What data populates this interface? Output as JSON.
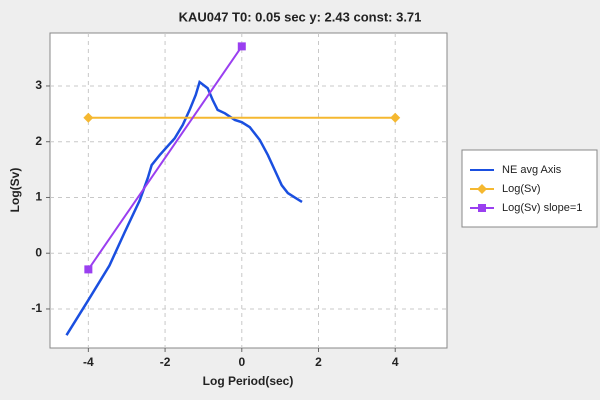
{
  "chart_data": {
    "type": "line",
    "title": "KAU047 T0: 0.05 sec  y: 2.43 const: 3.71",
    "x_label": "Log Period(sec)",
    "y_label": "Log(Sv)",
    "xlim": [
      -5,
      5.35
    ],
    "ylim": [
      -1.7,
      3.95
    ],
    "xticks": [
      -4,
      -2,
      0,
      2,
      4
    ],
    "yticks": [
      -1,
      0,
      1,
      2,
      3
    ],
    "grid": true,
    "legend": "right",
    "series": [
      {
        "name": "NE avg Axis",
        "color": "#1a4fe0",
        "marker": null,
        "x": [
          -4.57,
          -4,
          -3.45,
          -3.05,
          -2.66,
          -2.45,
          -2.35,
          -2.14,
          -1.96,
          -1.75,
          -1.54,
          -1.36,
          -1.2,
          -1.1,
          -0.89,
          -0.76,
          -0.63,
          -0.44,
          -0.18,
          0,
          0.21,
          0.47,
          0.68,
          0.86,
          1.04,
          1.2,
          1.38,
          1.57
        ],
        "values": [
          -1.47,
          -0.84,
          -0.22,
          0.38,
          0.95,
          1.35,
          1.58,
          1.76,
          1.9,
          2.06,
          2.3,
          2.57,
          2.84,
          3.07,
          2.96,
          2.75,
          2.57,
          2.51,
          2.39,
          2.35,
          2.26,
          2.03,
          1.76,
          1.49,
          1.22,
          1.08,
          1.0,
          0.92
        ]
      },
      {
        "name": "Log(Sv)",
        "color": "#f5b830",
        "marker": "diamond",
        "x": [
          -4,
          4
        ],
        "values": [
          2.43,
          2.43
        ]
      },
      {
        "name": "Log(Sv) slope=1",
        "color": "#9a3ff0",
        "marker": "square",
        "x": [
          -4,
          0
        ],
        "values": [
          -0.29,
          3.71
        ]
      }
    ]
  }
}
